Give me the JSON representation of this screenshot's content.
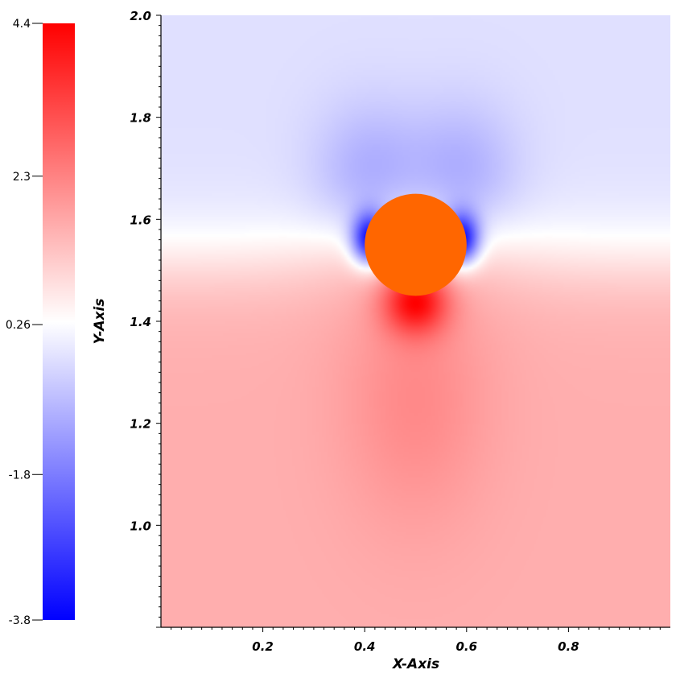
{
  "chart_data": {
    "type": "heatmap",
    "title": "",
    "xlabel": "X-Axis",
    "ylabel": "Y-Axis",
    "xlim": [
      0.0,
      1.0
    ],
    "ylim": [
      0.8,
      2.0
    ],
    "x_ticks": [
      0.2,
      0.4,
      0.6,
      0.8
    ],
    "x_tick_labels": [
      "0.2",
      "0.4",
      "0.6",
      "0.8"
    ],
    "y_ticks": [
      1.0,
      1.2,
      1.4,
      1.6,
      1.8,
      2.0
    ],
    "y_tick_labels": [
      "1.0",
      "1.2",
      "1.4",
      "1.6",
      "1.8",
      "2.0"
    ],
    "colorbar": {
      "min": -3.8,
      "max": 4.4,
      "ticks": [
        4.4,
        2.3,
        0.26,
        -1.8,
        -3.8
      ],
      "tick_labels": [
        "4.4",
        "2.3",
        "0.26",
        "-1.8",
        "-3.8"
      ],
      "colormap": [
        "#0000ff",
        "#ffffff",
        "#ff0000"
      ]
    },
    "obstacle": {
      "shape": "circle",
      "center": [
        0.5,
        1.55
      ],
      "radius": 0.1,
      "color": "#ff6600"
    },
    "field_description": {
      "far_field_below": 1.6,
      "far_field_above": -0.2,
      "peak_max_location": [
        0.5,
        1.44
      ],
      "peak_min_locations": [
        [
          0.41,
          1.56
        ],
        [
          0.59,
          1.56
        ]
      ]
    },
    "grid": false
  }
}
